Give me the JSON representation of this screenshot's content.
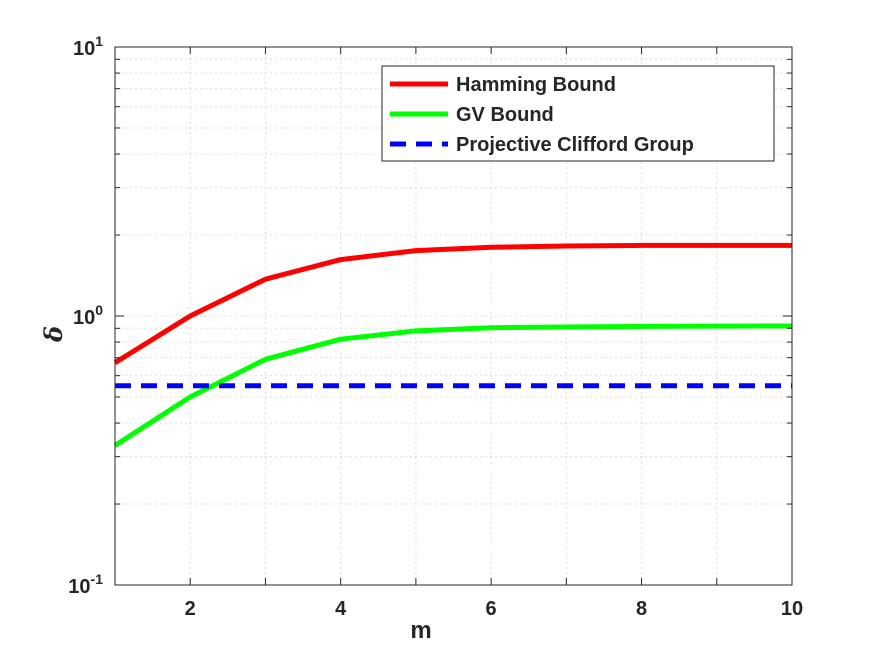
{
  "chart_data": {
    "type": "line",
    "xlabel": "m",
    "ylabel": "δ",
    "xlim": [
      1,
      10
    ],
    "ylim": [
      0.1,
      10
    ],
    "yscale": "log",
    "grid": true,
    "x_ticks": [
      "2",
      "4",
      "6",
      "8",
      "10"
    ],
    "y_ticks": [
      {
        "base": "10",
        "exp": "-1",
        "value": 0.1
      },
      {
        "base": "10",
        "exp": "0",
        "value": 1
      },
      {
        "base": "10",
        "exp": "1",
        "value": 10
      }
    ],
    "legend_position": "top-right",
    "x": [
      1,
      2,
      3,
      4,
      5,
      6,
      7,
      8,
      9,
      10
    ],
    "series": [
      {
        "name": "Hamming Bound",
        "color": "#ff0000",
        "style": "solid",
        "values": [
          0.67,
          1.0,
          1.37,
          1.62,
          1.75,
          1.8,
          1.82,
          1.83,
          1.83,
          1.83
        ]
      },
      {
        "name": "GV Bound",
        "color": "#00ff00",
        "style": "solid",
        "values": [
          0.33,
          0.5,
          0.69,
          0.82,
          0.88,
          0.905,
          0.91,
          0.915,
          0.917,
          0.918
        ]
      },
      {
        "name": "Projective Clifford Group",
        "color": "#0000ff",
        "style": "dashed",
        "values": [
          0.55,
          0.55,
          0.55,
          0.55,
          0.55,
          0.55,
          0.55,
          0.55,
          0.55,
          0.55
        ]
      }
    ]
  }
}
